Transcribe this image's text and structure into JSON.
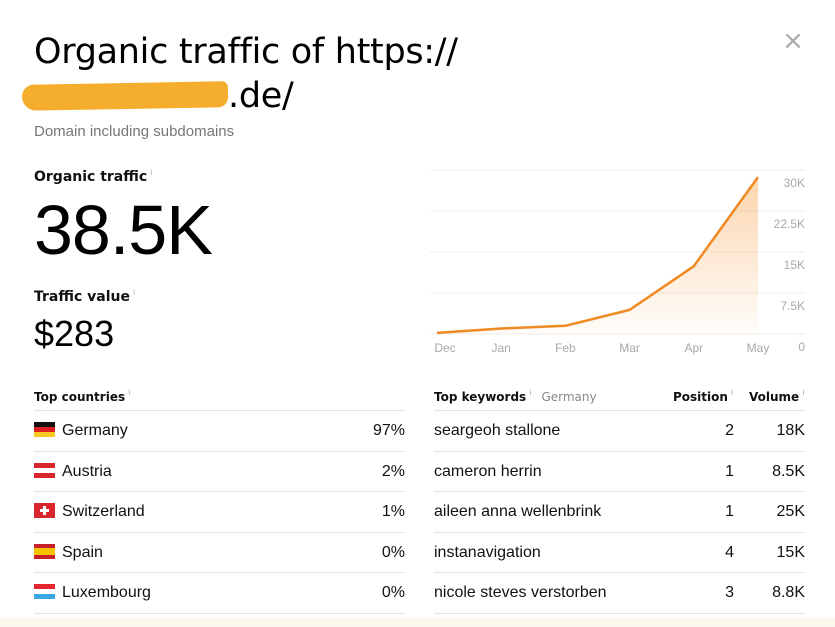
{
  "header": {
    "title_prefix": "Organic traffic of https://",
    "title_domain_suffix": ".de/",
    "subtitle": "Domain including subdomains",
    "close_icon": "×"
  },
  "metrics": {
    "organic_traffic": {
      "label": "Organic traffic",
      "info": "i",
      "value": "38.5K"
    },
    "traffic_value": {
      "label": "Traffic value",
      "info": "i",
      "value": "$283"
    }
  },
  "chart_data": {
    "type": "area",
    "title": "Organic traffic",
    "categories": [
      "Dec",
      "Jan",
      "Feb",
      "Mar",
      "Apr",
      "May"
    ],
    "series": [
      {
        "name": "Organic traffic",
        "values": [
          200,
          1000,
          1500,
          4400,
          12400,
          28700
        ],
        "color": "#ef8a22"
      }
    ],
    "y_ticks": [
      "30K",
      "22.5K",
      "15K",
      "7.5K",
      "0"
    ],
    "ylim": [
      0,
      30000
    ],
    "grid": true,
    "y_axis_position": "right"
  },
  "top_countries": {
    "title": "Top countries",
    "info": "i",
    "rows": [
      {
        "flag": "de-flag",
        "name": "Germany",
        "share": "97%"
      },
      {
        "flag": "at-flag",
        "name": "Austria",
        "share": "2%"
      },
      {
        "flag": "ch-flag",
        "name": "Switzerland",
        "share": "1%"
      },
      {
        "flag": "es-flag",
        "name": "Spain",
        "share": "0%"
      },
      {
        "flag": "lu-flag",
        "name": "Luxembourg",
        "share": "0%"
      }
    ]
  },
  "top_keywords": {
    "title": "Top keywords",
    "info": "i",
    "country": "Germany",
    "col_position": "Position",
    "col_volume": "Volume",
    "rows": [
      {
        "keyword": "seargeoh stallone",
        "position": "2",
        "volume": "18K"
      },
      {
        "keyword": "cameron herrin",
        "position": "1",
        "volume": "8.5K"
      },
      {
        "keyword": "aileen anna wellenbrink",
        "position": "1",
        "volume": "25K"
      },
      {
        "keyword": "instanavigation",
        "position": "4",
        "volume": "15K"
      },
      {
        "keyword": "nicole steves verstorben",
        "position": "3",
        "volume": "8.8K"
      }
    ]
  },
  "colors": {
    "accent": "#ef8a22",
    "redaction": "#f5ad2d",
    "grid": "#ececec",
    "axis_text": "#a8a8a8"
  }
}
